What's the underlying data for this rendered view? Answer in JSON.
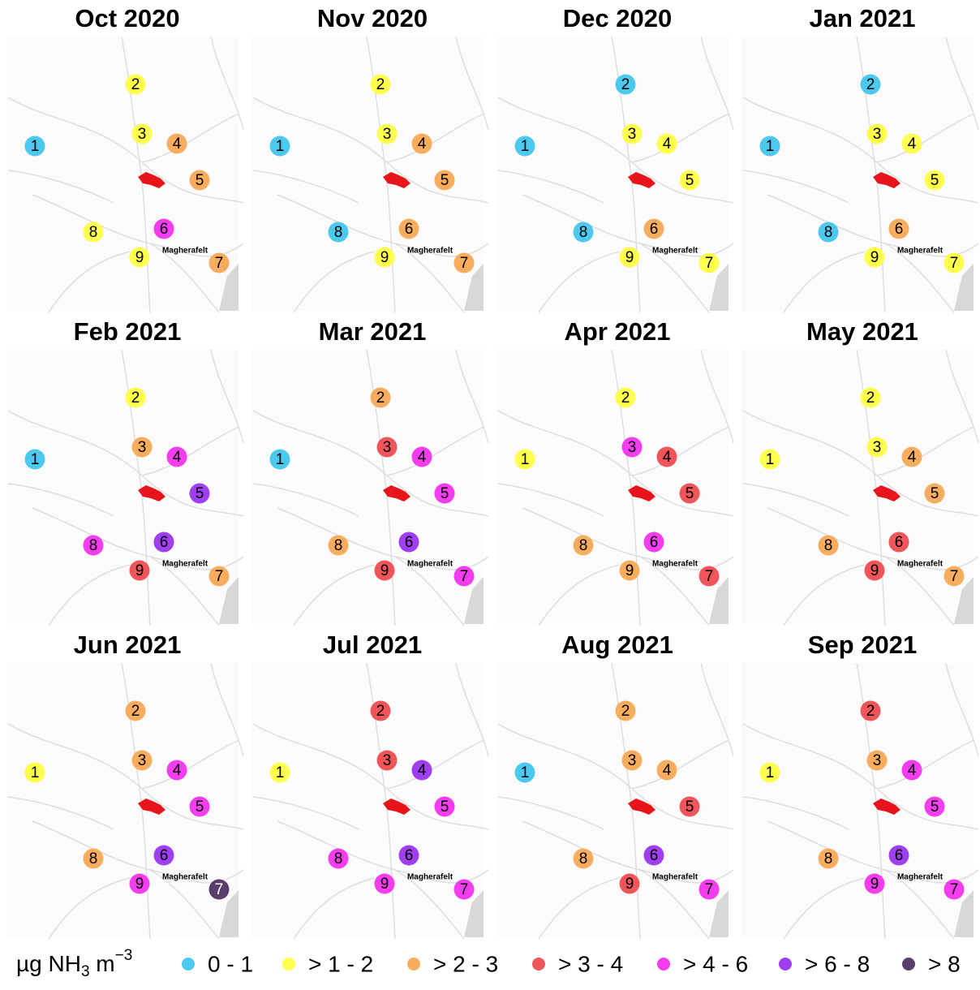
{
  "panels": [
    {
      "title": "Oct 2020",
      "classes": [
        0,
        1,
        1,
        2,
        2,
        4,
        2,
        1,
        1
      ]
    },
    {
      "title": "Nov 2020",
      "classes": [
        0,
        1,
        1,
        2,
        2,
        2,
        2,
        0,
        1
      ]
    },
    {
      "title": "Dec 2020",
      "classes": [
        0,
        0,
        1,
        1,
        1,
        2,
        1,
        0,
        1
      ]
    },
    {
      "title": "Jan 2021",
      "classes": [
        0,
        0,
        1,
        1,
        1,
        2,
        1,
        0,
        1
      ]
    },
    {
      "title": "Feb 2021",
      "classes": [
        0,
        1,
        2,
        4,
        5,
        5,
        2,
        4,
        3
      ]
    },
    {
      "title": "Mar 2021",
      "classes": [
        0,
        2,
        3,
        4,
        4,
        5,
        4,
        2,
        3
      ]
    },
    {
      "title": "Apr 2021",
      "classes": [
        1,
        1,
        4,
        3,
        3,
        4,
        3,
        2,
        2
      ]
    },
    {
      "title": "May 2021",
      "classes": [
        1,
        1,
        1,
        2,
        2,
        3,
        2,
        2,
        3
      ]
    },
    {
      "title": "Jun 2021",
      "classes": [
        1,
        2,
        2,
        4,
        4,
        5,
        6,
        2,
        4
      ]
    },
    {
      "title": "Jul 2021",
      "classes": [
        1,
        3,
        3,
        5,
        4,
        5,
        4,
        4,
        4
      ]
    },
    {
      "title": "Aug 2021",
      "classes": [
        0,
        2,
        2,
        2,
        3,
        5,
        4,
        2,
        3
      ]
    },
    {
      "title": "Sep 2021",
      "classes": [
        1,
        3,
        2,
        4,
        4,
        5,
        4,
        2,
        4
      ]
    }
  ],
  "sites": [
    "1",
    "2",
    "3",
    "4",
    "5",
    "6",
    "7",
    "8",
    "9"
  ],
  "town_label": "Magherafelt",
  "legend": {
    "unit": {
      "text": "µg NH",
      "sub": "3",
      "mid": " m",
      "sup": "−3"
    },
    "classes": [
      {
        "label": "0 - 1",
        "color": "#4dc9f0"
      },
      {
        "label": "> 1 - 2",
        "color": "#ffff4d"
      },
      {
        "label": "> 2 - 3",
        "color": "#f8ad5e"
      },
      {
        "label": "> 3 - 4",
        "color": "#f0555a"
      },
      {
        "label": "> 4 - 6",
        "color": "#f53df0"
      },
      {
        "label": "> 6 - 8",
        "color": "#9f3ff0"
      },
      {
        "label": "> 8",
        "color": "#5a3d6b"
      }
    ]
  }
}
